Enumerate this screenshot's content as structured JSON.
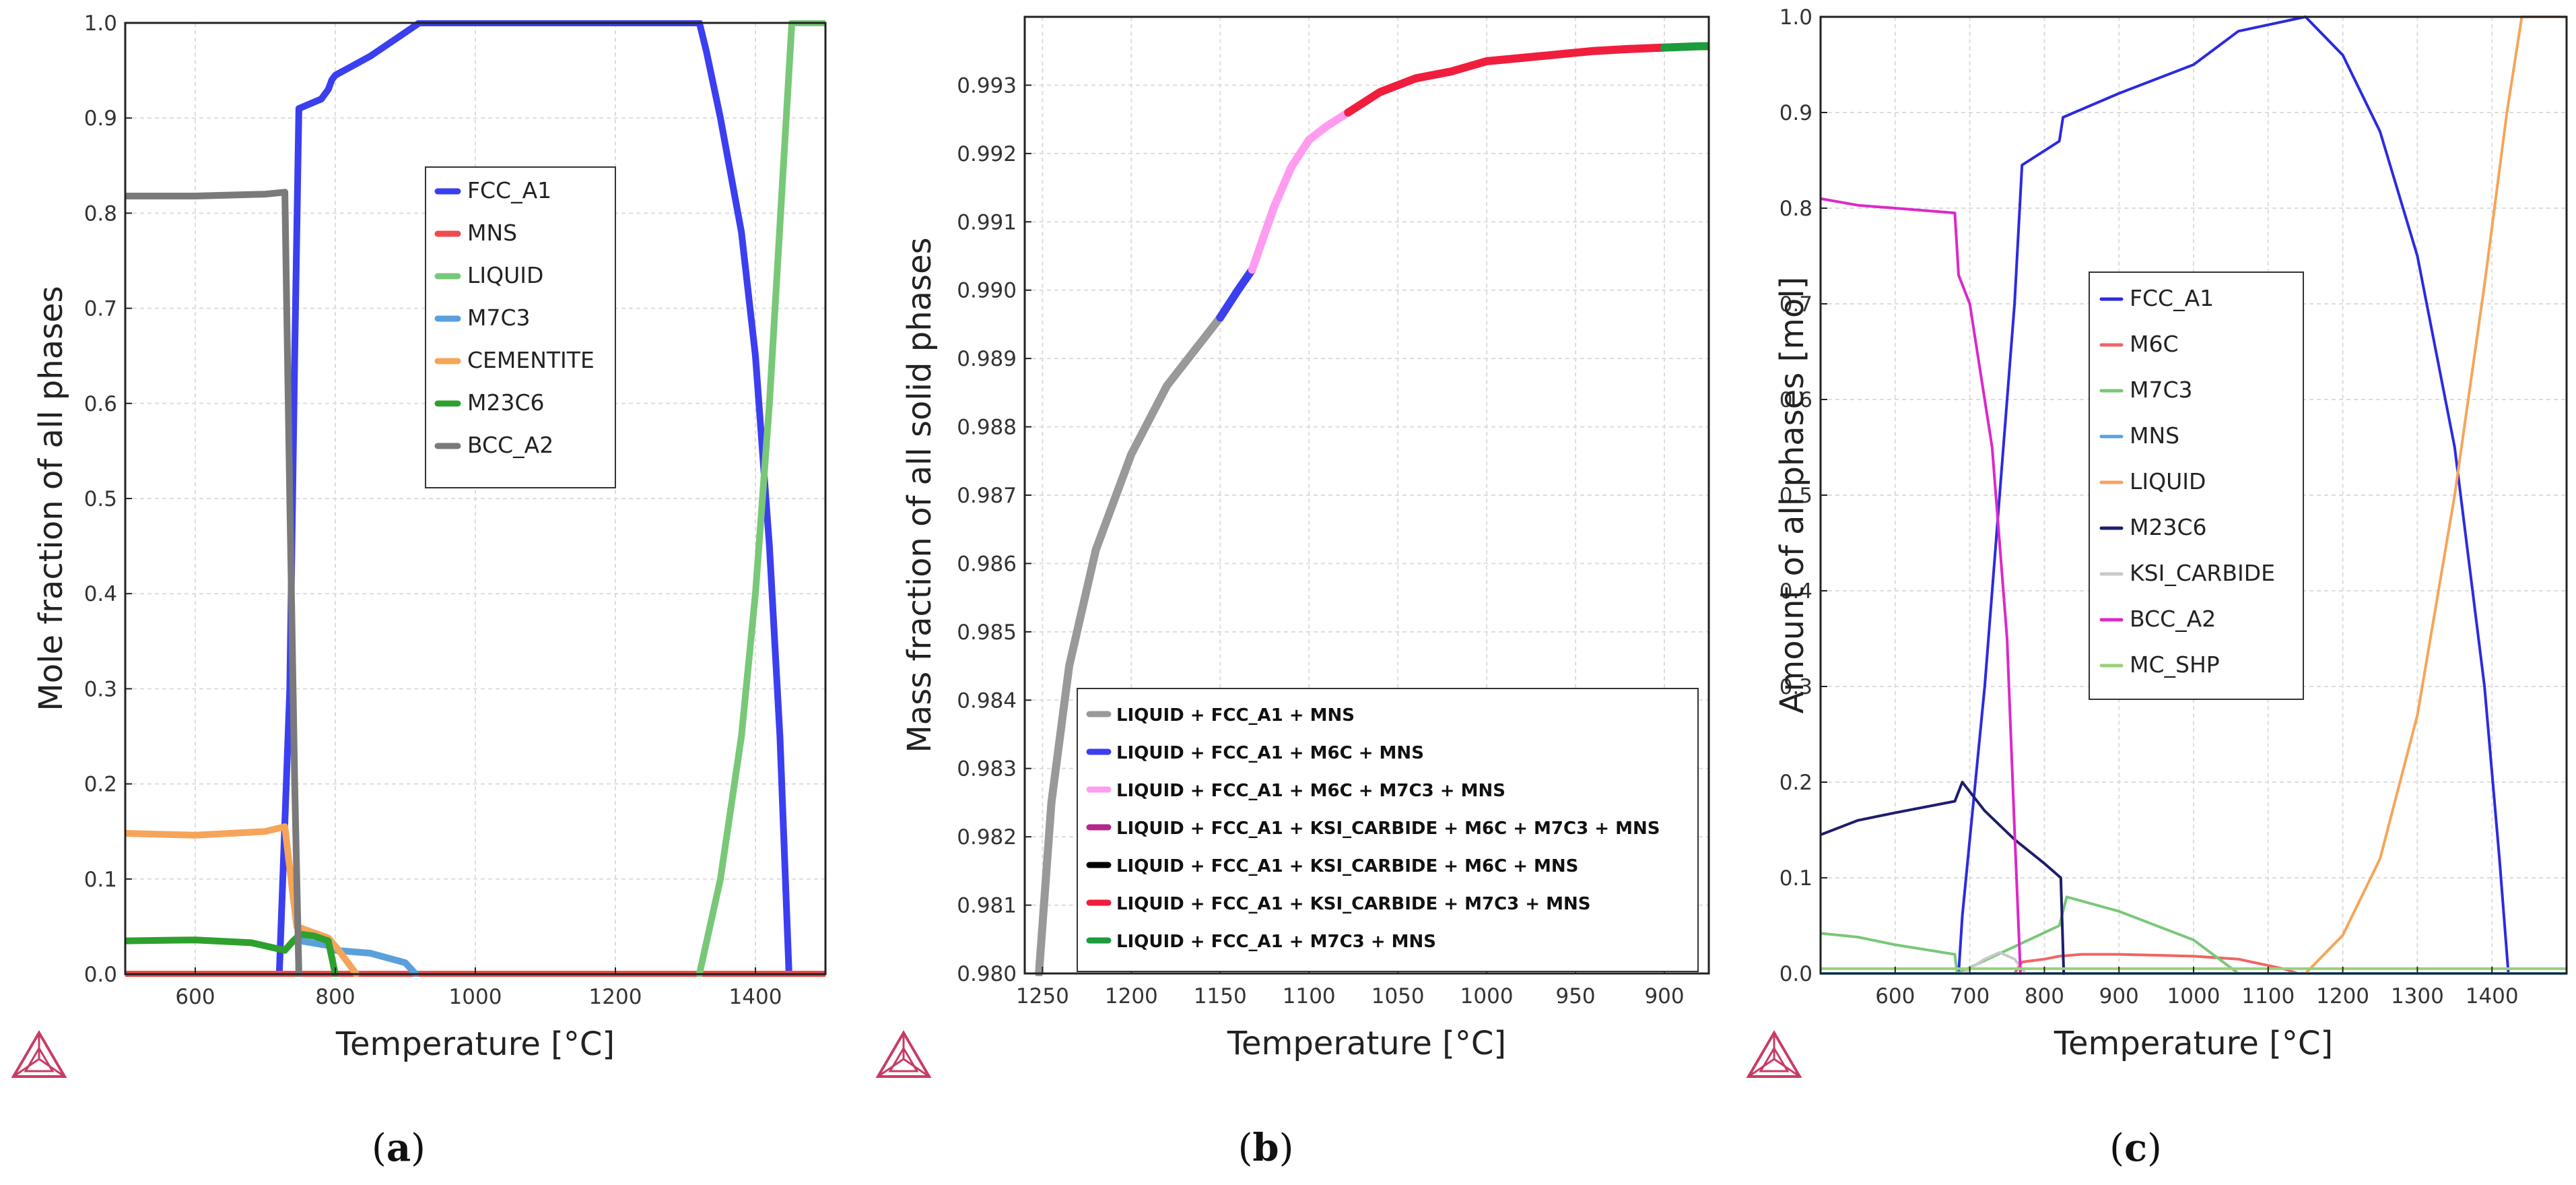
{
  "figure": {
    "captions": [
      {
        "open": "(",
        "letter": "a",
        "close": ")"
      },
      {
        "open": "(",
        "letter": "b",
        "close": ")"
      },
      {
        "open": "(",
        "letter": "c",
        "close": ")"
      }
    ]
  },
  "chart_data": [
    {
      "type": "line",
      "id": "a",
      "xlabel": "Temperature [°C]",
      "ylabel": "Mole fraction of all phases",
      "xlim": [
        500,
        1500
      ],
      "ylim": [
        0,
        1.0
      ],
      "xticks": [
        600,
        800,
        1000,
        1200,
        1400
      ],
      "xtick_labels": [
        "600",
        "800",
        "1000",
        "1200",
        "1400"
      ],
      "yticks": [
        0,
        0.1,
        0.2,
        0.3,
        0.4,
        0.5,
        0.6,
        0.7,
        0.8,
        0.9,
        1.0
      ],
      "ytick_labels": [
        "0.0",
        "0.1",
        "0.2",
        "0.3",
        "0.4",
        "0.5",
        "0.6",
        "0.7",
        "0.8",
        "0.9",
        "1.0"
      ],
      "legend": {
        "placement": "center-right",
        "entries": [
          "FCC_A1",
          "MNS",
          "LIQUID",
          "M7C3",
          "CEMENTITE",
          "M23C6",
          "BCC_A2"
        ]
      },
      "series": [
        {
          "name": "FCC_A1",
          "color": "#3b3ff0",
          "points": [
            [
              500,
              0
            ],
            [
              720,
              0
            ],
            [
              735,
              0.3
            ],
            [
              742,
              0.65
            ],
            [
              748,
              0.91
            ],
            [
              780,
              0.92
            ],
            [
              790,
              0.93
            ],
            [
              795,
              0.94
            ],
            [
              800,
              0.945
            ],
            [
              850,
              0.965
            ],
            [
              900,
              0.99
            ],
            [
              920,
              1.0
            ],
            [
              1320,
              1.0
            ],
            [
              1330,
              0.97
            ],
            [
              1350,
              0.9
            ],
            [
              1380,
              0.78
            ],
            [
              1400,
              0.65
            ],
            [
              1420,
              0.45
            ],
            [
              1435,
              0.25
            ],
            [
              1448,
              0
            ]
          ]
        },
        {
          "name": "MNS",
          "color": "#f04c4c",
          "points": [
            [
              500,
              0
            ],
            [
              1500,
              0
            ]
          ]
        },
        {
          "name": "LIQUID",
          "color": "#78c878",
          "points": [
            [
              1320,
              0
            ],
            [
              1350,
              0.1
            ],
            [
              1380,
              0.25
            ],
            [
              1400,
              0.4
            ],
            [
              1420,
              0.6
            ],
            [
              1440,
              0.85
            ],
            [
              1452,
              1.0
            ],
            [
              1500,
              1.0
            ]
          ]
        },
        {
          "name": "M7C3",
          "color": "#5aa0dc",
          "points": [
            [
              750,
              0.035
            ],
            [
              790,
              0.03
            ],
            [
              800,
              0.025
            ],
            [
              850,
              0.022
            ],
            [
              900,
              0.012
            ],
            [
              915,
              0
            ]
          ]
        },
        {
          "name": "CEMENTITE",
          "color": "#f5a55a",
          "points": [
            [
              500,
              0.148
            ],
            [
              600,
              0.146
            ],
            [
              700,
              0.15
            ],
            [
              728,
              0.155
            ],
            [
              740,
              0.08
            ],
            [
              745,
              0.05
            ],
            [
              790,
              0.038
            ],
            [
              805,
              0.025
            ],
            [
              830,
              0
            ]
          ]
        },
        {
          "name": "M23C6",
          "color": "#2ea02e",
          "points": [
            [
              500,
              0.035
            ],
            [
              600,
              0.036
            ],
            [
              680,
              0.033
            ],
            [
              728,
              0.025
            ],
            [
              740,
              0.035
            ],
            [
              750,
              0.042
            ],
            [
              770,
              0.04
            ],
            [
              790,
              0.035
            ],
            [
              800,
              0
            ]
          ]
        },
        {
          "name": "BCC_A2",
          "color": "#7a7a7a",
          "points": [
            [
              500,
              0.818
            ],
            [
              600,
              0.818
            ],
            [
              700,
              0.82
            ],
            [
              728,
              0.822
            ],
            [
              735,
              0.5
            ],
            [
              742,
              0.2
            ],
            [
              748,
              0
            ]
          ]
        }
      ]
    },
    {
      "type": "line",
      "id": "b",
      "xlabel": "Temperature [°C]",
      "ylabel": "Mass fraction of all solid phases",
      "xlim": [
        1260,
        875
      ],
      "ylim": [
        0.98,
        0.994
      ],
      "xticks": [
        1250,
        1200,
        1150,
        1100,
        1050,
        1000,
        950,
        900
      ],
      "xtick_labels": [
        "1250",
        "1200",
        "1150",
        "1100",
        "1050",
        "1000",
        "950",
        "900"
      ],
      "yticks": [
        0.98,
        0.981,
        0.982,
        0.983,
        0.984,
        0.985,
        0.986,
        0.987,
        0.988,
        0.989,
        0.99,
        0.991,
        0.992,
        0.993
      ],
      "ytick_labels": [
        "0.980",
        "0.981",
        "0.982",
        "0.983",
        "0.984",
        "0.985",
        "0.986",
        "0.987",
        "0.988",
        "0.989",
        "0.990",
        "0.991",
        "0.992",
        "0.993"
      ],
      "legend": {
        "placement": "bottom-right",
        "entries": [
          "LIQUID + FCC_A1 + MNS",
          "LIQUID + FCC_A1 + M6C + MNS",
          "LIQUID + FCC_A1 + M6C + M7C3 + MNS",
          "LIQUID + FCC_A1 + KSI_CARBIDE + M6C + M7C3 + MNS",
          "LIQUID + FCC_A1 + KSI_CARBIDE + M6C + MNS",
          "LIQUID + FCC_A1 + KSI_CARBIDE + M7C3 + MNS",
          "LIQUID + FCC_A1 + M7C3 + MNS"
        ]
      },
      "series": [
        {
          "name": "LIQUID + FCC_A1 + MNS",
          "color": "#999999",
          "points": [
            [
              1252,
              0.98
            ],
            [
              1245,
              0.9825
            ],
            [
              1235,
              0.9845
            ],
            [
              1220,
              0.9862
            ],
            [
              1200,
              0.9876
            ],
            [
              1180,
              0.9886
            ],
            [
              1165,
              0.9891
            ],
            [
              1150,
              0.9896
            ]
          ]
        },
        {
          "name": "LIQUID + FCC_A1 + M6C + MNS",
          "color": "#3b3ff0",
          "points": [
            [
              1150,
              0.9896
            ],
            [
              1140,
              0.99
            ],
            [
              1132,
              0.9903
            ]
          ]
        },
        {
          "name": "LIQUID + FCC_A1 + M6C + M7C3 + MNS",
          "color": "#ff9cf0",
          "points": [
            [
              1132,
              0.9903
            ],
            [
              1120,
              0.9912
            ],
            [
              1110,
              0.9918
            ],
            [
              1100,
              0.9922
            ],
            [
              1090,
              0.9924
            ],
            [
              1078,
              0.9926
            ]
          ]
        },
        {
          "name": "LIQUID + FCC_A1 + KSI_CARBIDE + M6C + M7C3 + MNS",
          "color": "#b4288c",
          "points": []
        },
        {
          "name": "LIQUID + FCC_A1 + KSI_CARBIDE + M6C + MNS",
          "color": "#000000",
          "points": []
        },
        {
          "name": "LIQUID + FCC_A1 + KSI_CARBIDE + M7C3 + MNS",
          "color": "#f01e3c",
          "points": [
            [
              1078,
              0.9926
            ],
            [
              1060,
              0.9929
            ],
            [
              1040,
              0.9931
            ],
            [
              1020,
              0.9932
            ],
            [
              1000,
              0.99335
            ],
            [
              980,
              0.9934
            ],
            [
              960,
              0.99345
            ],
            [
              940,
              0.9935
            ],
            [
              920,
              0.99353
            ],
            [
              900,
              0.99355
            ]
          ]
        },
        {
          "name": "LIQUID + FCC_A1 + M7C3 + MNS",
          "color": "#1e9b3c",
          "points": [
            [
              900,
              0.99355
            ],
            [
              880,
              0.99357
            ],
            [
              875,
              0.99357
            ]
          ]
        }
      ]
    },
    {
      "type": "line",
      "id": "c",
      "xlabel": "Temperature [°C]",
      "ylabel": "Amount of all phases [mol]",
      "xlim": [
        500,
        1500
      ],
      "ylim": [
        0,
        1.0
      ],
      "xticks": [
        600,
        700,
        800,
        900,
        1000,
        1100,
        1200,
        1300,
        1400
      ],
      "xtick_labels": [
        "600",
        "700",
        "800",
        "900",
        "1000",
        "1100",
        "1200",
        "1300",
        "1400"
      ],
      "yticks": [
        0,
        0.1,
        0.2,
        0.3,
        0.4,
        0.5,
        0.6,
        0.7,
        0.8,
        0.9,
        1.0
      ],
      "ytick_labels": [
        "0.0",
        "0.1",
        "0.2",
        "0.3",
        "0.4",
        "0.5",
        "0.6",
        "0.7",
        "0.8",
        "0.9",
        "1.0"
      ],
      "legend": {
        "placement": "center",
        "entries": [
          "FCC_A1",
          "M6C",
          "M7C3",
          "MNS",
          "LIQUID",
          "M23C6",
          "KSI_CARBIDE",
          "BCC_A2",
          "MC_SHP"
        ]
      },
      "series": [
        {
          "name": "FCC_A1",
          "color": "#2b2be0",
          "points": [
            [
              685,
              0
            ],
            [
              690,
              0.06
            ],
            [
              720,
              0.3
            ],
            [
              760,
              0.7
            ],
            [
              770,
              0.845
            ],
            [
              810,
              0.865
            ],
            [
              820,
              0.87
            ],
            [
              825,
              0.895
            ],
            [
              900,
              0.92
            ],
            [
              1000,
              0.95
            ],
            [
              1060,
              0.985
            ],
            [
              1150,
              1.0
            ],
            [
              1200,
              0.96
            ],
            [
              1250,
              0.88
            ],
            [
              1300,
              0.75
            ],
            [
              1350,
              0.55
            ],
            [
              1390,
              0.3
            ],
            [
              1410,
              0.12
            ],
            [
              1422,
              0
            ]
          ]
        },
        {
          "name": "M6C",
          "color": "#f06464",
          "points": [
            [
              760,
              0
            ],
            [
              770,
              0.012
            ],
            [
              800,
              0.015
            ],
            [
              820,
              0.018
            ],
            [
              850,
              0.02
            ],
            [
              900,
              0.02
            ],
            [
              1000,
              0.018
            ],
            [
              1060,
              0.015
            ],
            [
              1120,
              0.005
            ],
            [
              1140,
              0
            ]
          ]
        },
        {
          "name": "M7C3",
          "color": "#78c878",
          "points": [
            [
              500,
              0.042
            ],
            [
              550,
              0.038
            ],
            [
              600,
              0.03
            ],
            [
              680,
              0.02
            ],
            [
              683,
              0
            ],
            [
              820,
              0.05
            ],
            [
              830,
              0.08
            ],
            [
              900,
              0.065
            ],
            [
              1000,
              0.035
            ],
            [
              1060,
              0
            ]
          ]
        },
        {
          "name": "MNS",
          "color": "#5aa0dc",
          "points": [
            [
              500,
              0
            ],
            [
              1500,
              0
            ]
          ]
        },
        {
          "name": "LIQUID",
          "color": "#f5a55a",
          "points": [
            [
              1150,
              0
            ],
            [
              1200,
              0.04
            ],
            [
              1250,
              0.12
            ],
            [
              1300,
              0.27
            ],
            [
              1350,
              0.5
            ],
            [
              1390,
              0.72
            ],
            [
              1420,
              0.9
            ],
            [
              1440,
              1.0
            ],
            [
              1500,
              1.0
            ]
          ]
        },
        {
          "name": "M23C6",
          "color": "#1e1e6e",
          "points": [
            [
              500,
              0.145
            ],
            [
              550,
              0.16
            ],
            [
              600,
              0.168
            ],
            [
              680,
              0.18
            ],
            [
              690,
              0.2
            ],
            [
              720,
              0.17
            ],
            [
              760,
              0.14
            ],
            [
              800,
              0.115
            ],
            [
              822,
              0.1
            ],
            [
              826,
              0
            ]
          ]
        },
        {
          "name": "KSI_CARBIDE",
          "color": "#c8c8c8",
          "points": [
            [
              690,
              0
            ],
            [
              720,
              0.015
            ],
            [
              740,
              0.022
            ],
            [
              760,
              0.015
            ],
            [
              775,
              0
            ]
          ]
        },
        {
          "name": "BCC_A2",
          "color": "#dc28c8",
          "points": [
            [
              500,
              0.81
            ],
            [
              550,
              0.803
            ],
            [
              600,
              0.8
            ],
            [
              680,
              0.795
            ],
            [
              685,
              0.73
            ],
            [
              700,
              0.7
            ],
            [
              730,
              0.55
            ],
            [
              750,
              0.35
            ],
            [
              760,
              0.15
            ],
            [
              768,
              0
            ]
          ]
        },
        {
          "name": "MC_SHP",
          "color": "#96d278",
          "points": [
            [
              500,
              0.005
            ],
            [
              1500,
              0.005
            ]
          ]
        }
      ]
    }
  ]
}
